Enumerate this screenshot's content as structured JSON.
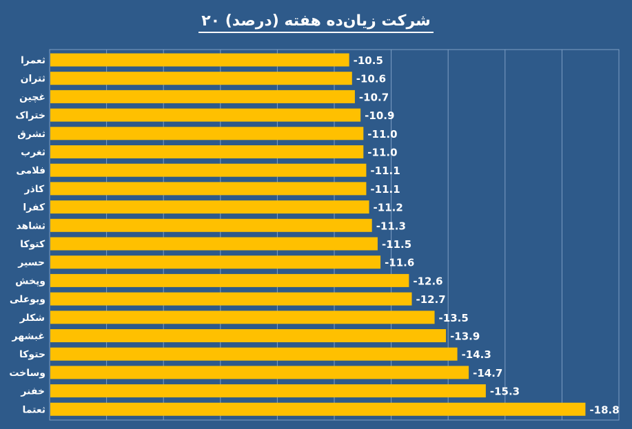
{
  "chart_data": {
    "type": "bar",
    "orientation": "horizontal",
    "title": "۲۰ شرکت زیان‌ده هفته (درصد)",
    "categories": [
      "ثعمرا",
      "ثتران",
      "غچین",
      "ختراک",
      "ثشرق",
      "ثغرب",
      "فلامی",
      "کاذر",
      "کفرا",
      "ثشاهد",
      "کتوکا",
      "حسیر",
      "وپخش",
      "وبوعلی",
      "شکلر",
      "غبشهر",
      "حتوکا",
      "وساخت",
      "خفنر",
      "ثعتما"
    ],
    "values": [
      -10.5,
      -10.6,
      -10.7,
      -10.9,
      -11.0,
      -11.0,
      -11.1,
      -11.1,
      -11.2,
      -11.3,
      -11.5,
      -11.6,
      -12.6,
      -12.7,
      -13.5,
      -13.9,
      -14.3,
      -14.7,
      -15.3,
      -18.8
    ],
    "value_labels": [
      "-10.5",
      "-10.6",
      "-10.7",
      "-10.9",
      "-11.0",
      "-11.0",
      "-11.1",
      "-11.1",
      "-11.2",
      "-11.3",
      "-11.5",
      "-11.6",
      "-12.6",
      "-12.7",
      "-13.5",
      "-13.9",
      "-14.3",
      "-14.7",
      "-15.3",
      "-18.8"
    ],
    "xlim": [
      0,
      -20
    ],
    "grid": true,
    "legend": "none",
    "colors": {
      "background": "#2e5a8a",
      "bar": "#ffc000",
      "text": "#ffffff",
      "grid": "#7f9fc4"
    }
  }
}
